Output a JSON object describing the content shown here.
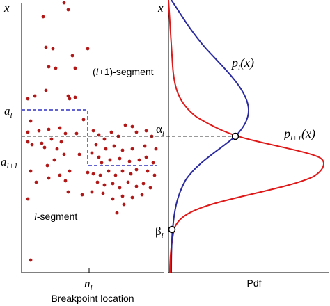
{
  "left_panel": {
    "y_axis_var": "x",
    "x_tick_main": "n",
    "x_tick_sub": "l",
    "x_axis_label": "Breakpoint location",
    "upper_region_open": "(",
    "upper_region_italic": "l",
    "upper_region_rest": "+1)-segment",
    "lower_region_italic": "l",
    "lower_region_rest": "-segment",
    "level_a_l": {
      "main": "a",
      "sub": "l"
    },
    "level_a_l1": {
      "main": "a",
      "sub": "l+1"
    }
  },
  "right_panel": {
    "y_axis_var": "x",
    "x_axis_label": "Pdf",
    "pdf_l": {
      "main": "p",
      "sub": "l",
      "arg": "(x)"
    },
    "pdf_l1": {
      "main": "p",
      "sub": "l+1",
      "arg": "(x)"
    },
    "alpha": {
      "main": "α",
      "sub": "l"
    },
    "beta": {
      "main": "β",
      "sub": "l"
    }
  },
  "colors": {
    "scatter": "#b01818",
    "pdf_l": "#2a2aa0",
    "pdf_l1": "#e01818",
    "step": "#3030c0",
    "guide": "#333333"
  }
}
